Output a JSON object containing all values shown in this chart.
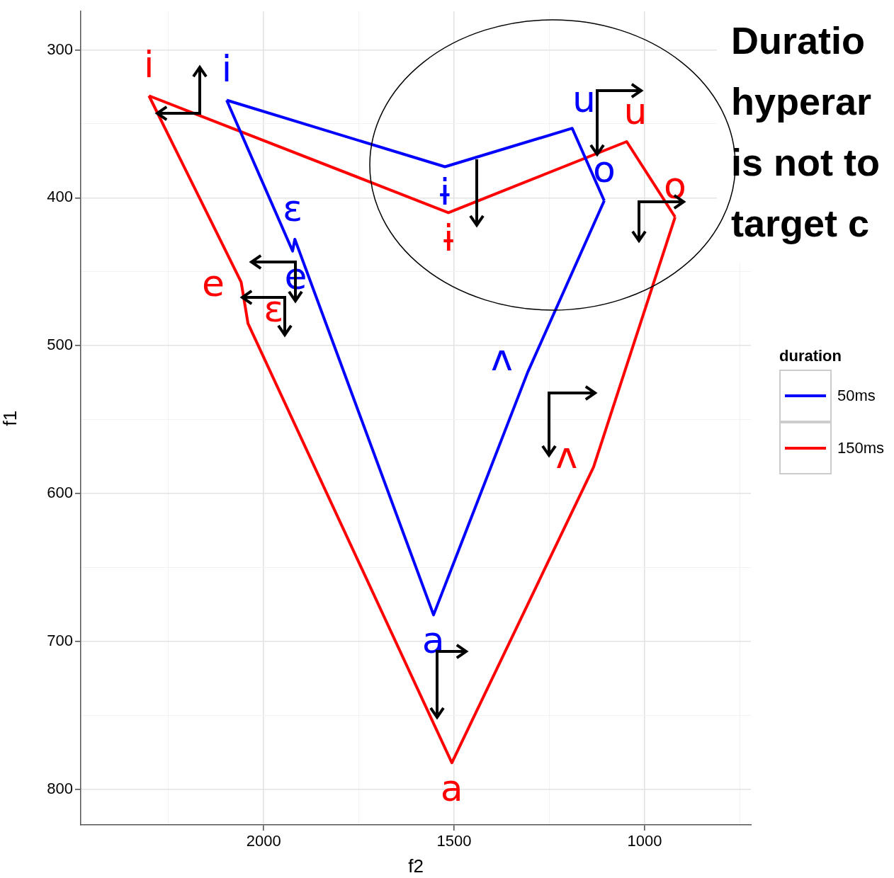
{
  "chart_data": {
    "type": "line",
    "xlabel": "f2",
    "ylabel": "f1",
    "legend_title": "duration",
    "legend": "right",
    "grid": true,
    "marker": "none",
    "line_style": "solid",
    "xlim": [
      2480,
      721
    ],
    "ylim": [
      824,
      274
    ],
    "xticks": [
      {
        "value": 2250,
        "label": null
      },
      2000,
      {
        "value": 1750,
        "label": null
      },
      1500,
      {
        "value": 1250,
        "label": null
      },
      1000,
      {
        "value": 750,
        "label": null
      }
    ],
    "yticks": [
      300,
      {
        "value": 350,
        "label": null
      },
      400,
      {
        "value": 450,
        "label": null
      },
      500,
      {
        "value": 550,
        "label": null
      },
      600,
      {
        "value": 650,
        "label": null
      },
      700,
      {
        "value": 750,
        "label": null
      },
      800
    ],
    "series": [
      {
        "name": "50ms",
        "color": "#0000ff",
        "x": [
          2097,
          1524,
          1190,
          1106
        ],
        "values": [
          334,
          379,
          353,
          402
        ],
        "value_labels": [
          "i",
          "ɨ",
          "u",
          null
        ]
      },
      {
        "color": "#0000ff",
        "x": [
          2097,
          1924,
          1918,
          1554,
          1307,
          1106
        ],
        "values": [
          334,
          436,
          428,
          682,
          518,
          402
        ],
        "value_labels": [
          null,
          "e",
          "ɛ",
          "a",
          "ʌ",
          "o"
        ]
      },
      {
        "name": "150ms",
        "color": "#ff0000",
        "x": [
          2301,
          1515,
          1047,
          920
        ],
        "values": [
          331,
          410,
          362,
          413
        ],
        "value_labels": [
          "i",
          "ɨ",
          "u",
          null
        ]
      },
      {
        "color": "#ff0000",
        "x": [
          2301,
          2059,
          2041,
          1506,
          1134,
          920
        ],
        "values": [
          331,
          457,
          485,
          782,
          582,
          413
        ],
        "value_labels": [
          null,
          "e",
          "ɛ",
          "a",
          "ʌ",
          "o"
        ]
      }
    ],
    "annotations": [
      "Duratio",
      "hyperar",
      "is not to",
      "target c"
    ]
  }
}
